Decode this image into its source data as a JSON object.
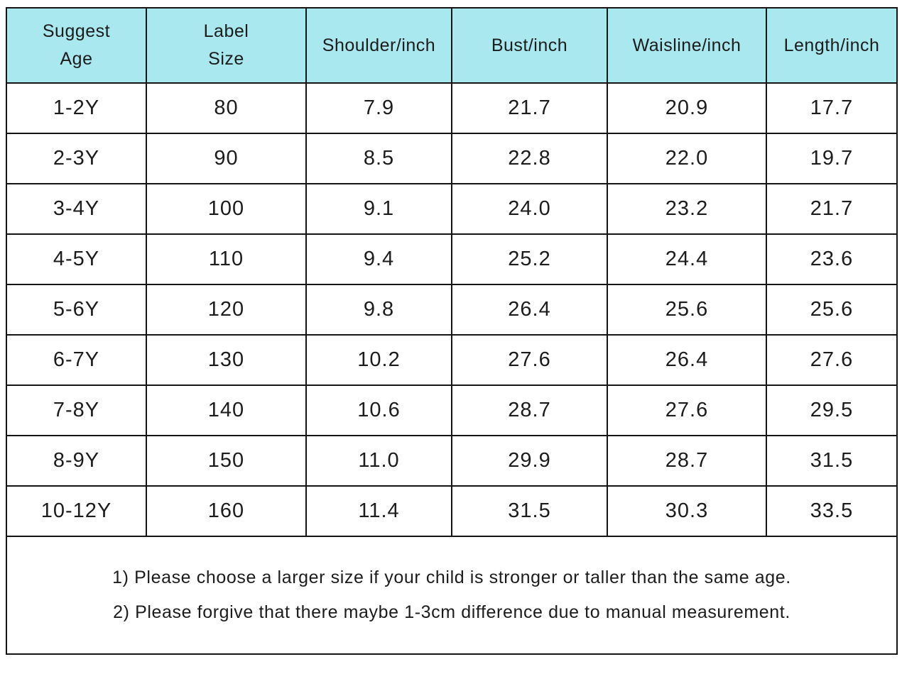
{
  "chart_data": {
    "type": "table",
    "columns": [
      "Suggest\nAge",
      "Label\nSize",
      "Shoulder/inch",
      "Bust/inch",
      "Waisline/inch",
      "Length/inch"
    ],
    "rows": [
      [
        "1-2Y",
        "80",
        "7.9",
        "21.7",
        "20.9",
        "17.7"
      ],
      [
        "2-3Y",
        "90",
        "8.5",
        "22.8",
        "22.0",
        "19.7"
      ],
      [
        "3-4Y",
        "100",
        "9.1",
        "24.0",
        "23.2",
        "21.7"
      ],
      [
        "4-5Y",
        "110",
        "9.4",
        "25.2",
        "24.4",
        "23.6"
      ],
      [
        "5-6Y",
        "120",
        "9.8",
        "26.4",
        "25.6",
        "25.6"
      ],
      [
        "6-7Y",
        "130",
        "10.2",
        "27.6",
        "26.4",
        "27.6"
      ],
      [
        "7-8Y",
        "140",
        "10.6",
        "28.7",
        "27.6",
        "29.5"
      ],
      [
        "8-9Y",
        "150",
        "11.0",
        "29.9",
        "28.7",
        "31.5"
      ],
      [
        "10-12Y",
        "160",
        "11.4",
        "31.5",
        "30.3",
        "33.5"
      ]
    ],
    "notes": [
      "1) Please choose a larger size if your child is stronger or taller than the same age.",
      "2) Please forgive that there maybe 1-3cm difference due to manual measurement."
    ],
    "layout_hints": {
      "header_two_line_columns": [
        "Suggest Age",
        "Label Size"
      ],
      "grid": "on",
      "units": "inch"
    }
  },
  "colors": {
    "header_bg": "#a9e8ef",
    "border": "#141414",
    "page_bg": "#ffffff",
    "text": "#1c1c1c"
  }
}
